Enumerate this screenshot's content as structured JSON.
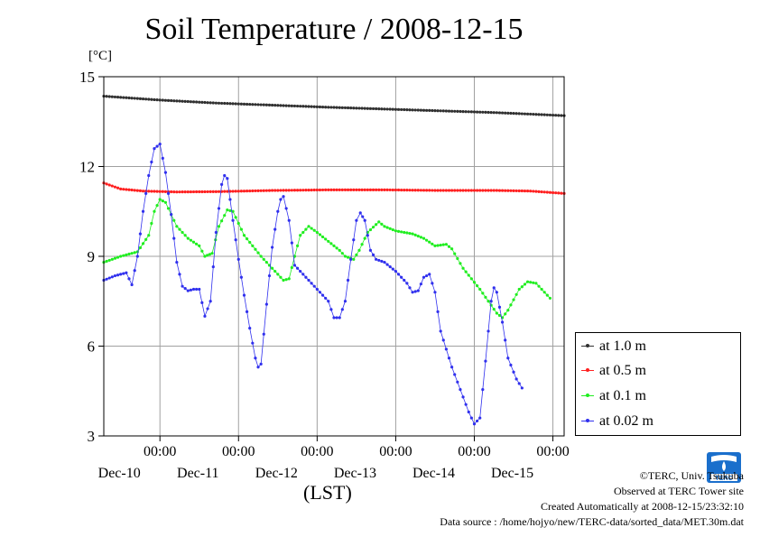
{
  "header": {
    "title": "Soil Temperature / 2008-12-15",
    "unit": "[°C]",
    "xlabel": "(LST)"
  },
  "legend": {
    "items": [
      {
        "label": "at 1.0 m",
        "color": "#303030"
      },
      {
        "label": "at 0.5 m",
        "color": "#ff2020"
      },
      {
        "label": "at 0.1 m",
        "color": "#20ee20"
      },
      {
        "label": "at 0.02 m",
        "color": "#3030ee"
      }
    ]
  },
  "credits": {
    "copyright": "©TERC, Univ. Tsukuba",
    "site": "Observed at TERC Tower site",
    "created": "Created Automatically at 2008-12-15/23:32:10",
    "source": "Data source : /home/hojyo/new/TERC-data/sorted_data/MET.30m.dat"
  },
  "logo": {
    "text": "TERC"
  },
  "chart_data": {
    "type": "line",
    "title": "Soil Temperature / 2008-12-15",
    "xlabel": "(LST)",
    "ylabel": "[°C]",
    "x_unit": "hours relative to 2008-12-10 00:00 LST",
    "xlim": [
      -10,
      72
    ],
    "ylim": [
      3,
      15
    ],
    "yticks": [
      3,
      6,
      9,
      12,
      15
    ],
    "xticks": [
      {
        "x": 0,
        "time": "00:00",
        "date": "Dec-10"
      },
      {
        "x": 14,
        "time": "00:00",
        "date": "Dec-11"
      },
      {
        "x": 28,
        "time": "00:00",
        "date": "Dec-12"
      },
      {
        "x": 42,
        "time": "00:00",
        "date": "Dec-13"
      },
      {
        "x": 56,
        "time": "00:00",
        "date": "Dec-14"
      },
      {
        "x": 70,
        "time": "00:00",
        "date": "Dec-15"
      }
    ],
    "grid": true,
    "legend_position": "lower-right outside",
    "series": [
      {
        "name": "at 1.0 m",
        "color": "#303030",
        "points": [
          [
            -10,
            14.35
          ],
          [
            0,
            14.22
          ],
          [
            10,
            14.12
          ],
          [
            20,
            14.05
          ],
          [
            30,
            13.98
          ],
          [
            40,
            13.92
          ],
          [
            50,
            13.86
          ],
          [
            60,
            13.8
          ],
          [
            72,
            13.7
          ]
        ]
      },
      {
        "name": "at 0.5 m",
        "color": "#ff2020",
        "points": [
          [
            -10,
            11.45
          ],
          [
            -7,
            11.25
          ],
          [
            -3,
            11.18
          ],
          [
            3,
            11.15
          ],
          [
            10,
            11.16
          ],
          [
            20,
            11.2
          ],
          [
            30,
            11.22
          ],
          [
            40,
            11.22
          ],
          [
            50,
            11.2
          ],
          [
            60,
            11.2
          ],
          [
            66,
            11.18
          ],
          [
            72,
            11.1
          ]
        ]
      },
      {
        "name": "at 0.1 m",
        "color": "#20ee20",
        "points": [
          [
            -10,
            8.8
          ],
          [
            -7,
            9.0
          ],
          [
            -5,
            9.1
          ],
          [
            -4,
            9.15
          ],
          [
            -2,
            9.7
          ],
          [
            -1,
            10.5
          ],
          [
            0,
            10.9
          ],
          [
            1,
            10.8
          ],
          [
            3,
            10.0
          ],
          [
            5,
            9.6
          ],
          [
            7,
            9.35
          ],
          [
            8,
            9.0
          ],
          [
            9.3,
            9.1
          ],
          [
            10.5,
            10.0
          ],
          [
            12,
            10.55
          ],
          [
            13,
            10.5
          ],
          [
            15,
            9.7
          ],
          [
            18,
            9.0
          ],
          [
            22,
            8.2
          ],
          [
            23,
            8.25
          ],
          [
            24,
            9.0
          ],
          [
            25,
            9.7
          ],
          [
            26.5,
            10.0
          ],
          [
            28,
            9.8
          ],
          [
            30,
            9.5
          ],
          [
            32,
            9.2
          ],
          [
            33,
            9.0
          ],
          [
            34.5,
            8.9
          ],
          [
            35.5,
            9.2
          ],
          [
            37,
            9.8
          ],
          [
            39,
            10.15
          ],
          [
            40,
            10.0
          ],
          [
            42,
            9.85
          ],
          [
            45,
            9.75
          ],
          [
            47,
            9.6
          ],
          [
            49,
            9.35
          ],
          [
            51,
            9.4
          ],
          [
            52,
            9.25
          ],
          [
            54,
            8.6
          ],
          [
            57,
            7.9
          ],
          [
            60,
            7.1
          ],
          [
            61,
            6.95
          ],
          [
            62,
            7.2
          ],
          [
            64,
            7.9
          ],
          [
            65.5,
            8.15
          ],
          [
            67,
            8.1
          ],
          [
            68.5,
            7.8
          ],
          [
            69.5,
            7.6
          ]
        ]
      },
      {
        "name": "at 0.02 m",
        "color": "#3030ee",
        "points": [
          [
            -10,
            8.2
          ],
          [
            -8,
            8.35
          ],
          [
            -6,
            8.45
          ],
          [
            -5,
            8.05
          ],
          [
            -4,
            9.0
          ],
          [
            -3,
            10.5
          ],
          [
            -2,
            11.7
          ],
          [
            -1,
            12.6
          ],
          [
            0,
            12.75
          ],
          [
            1,
            11.8
          ],
          [
            2,
            10.4
          ],
          [
            3,
            8.8
          ],
          [
            4,
            8.0
          ],
          [
            5,
            7.85
          ],
          [
            6,
            7.9
          ],
          [
            7,
            7.9
          ],
          [
            8,
            7.0
          ],
          [
            9,
            7.5
          ],
          [
            10,
            9.8
          ],
          [
            11,
            11.4
          ],
          [
            11.5,
            11.7
          ],
          [
            12,
            11.6
          ],
          [
            13,
            10.2
          ],
          [
            14,
            8.9
          ],
          [
            15,
            7.7
          ],
          [
            16,
            6.6
          ],
          [
            17,
            5.6
          ],
          [
            17.5,
            5.3
          ],
          [
            18,
            5.4
          ],
          [
            19,
            7.4
          ],
          [
            20,
            9.3
          ],
          [
            21,
            10.5
          ],
          [
            21.5,
            10.9
          ],
          [
            22,
            11.0
          ],
          [
            23,
            10.2
          ],
          [
            24,
            8.7
          ],
          [
            26,
            8.3
          ],
          [
            28,
            7.9
          ],
          [
            30,
            7.5
          ],
          [
            31,
            6.95
          ],
          [
            32,
            6.95
          ],
          [
            33,
            7.5
          ],
          [
            34,
            8.9
          ],
          [
            35,
            10.2
          ],
          [
            35.7,
            10.45
          ],
          [
            36.5,
            10.2
          ],
          [
            37.5,
            9.2
          ],
          [
            38.5,
            8.9
          ],
          [
            40,
            8.8
          ],
          [
            42,
            8.5
          ],
          [
            44,
            8.1
          ],
          [
            45,
            7.8
          ],
          [
            46,
            7.85
          ],
          [
            47,
            8.3
          ],
          [
            48,
            8.4
          ],
          [
            49,
            7.8
          ],
          [
            50,
            6.5
          ],
          [
            52,
            5.3
          ],
          [
            54,
            4.3
          ],
          [
            55,
            3.8
          ],
          [
            56,
            3.4
          ],
          [
            57,
            3.6
          ],
          [
            58,
            5.5
          ],
          [
            59,
            7.5
          ],
          [
            59.5,
            7.95
          ],
          [
            60,
            7.8
          ],
          [
            61,
            6.8
          ],
          [
            62,
            5.6
          ],
          [
            63.5,
            4.9
          ],
          [
            64.5,
            4.6
          ]
        ]
      }
    ]
  }
}
